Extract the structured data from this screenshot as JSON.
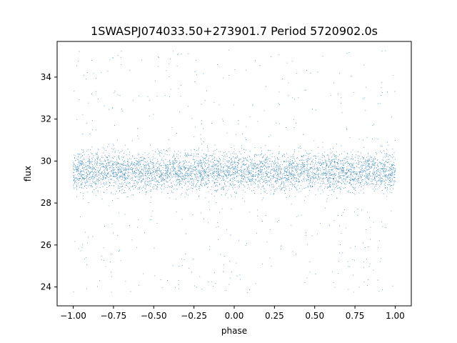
{
  "chart_data": {
    "type": "scatter",
    "title": "1SWASPJ074033.50+273901.7 Period 5720902.0s",
    "xlabel": "phase",
    "ylabel": "flux",
    "xlim": [
      -1.1,
      1.1
    ],
    "ylim": [
      23.1,
      35.7
    ],
    "x_ticks": [
      -1.0,
      -0.75,
      -0.5,
      -0.25,
      0.0,
      0.25,
      0.5,
      0.75,
      1.0
    ],
    "x_tick_labels": [
      "−1.00",
      "−0.75",
      "−0.50",
      "−0.25",
      "0.00",
      "0.25",
      "0.50",
      "0.75",
      "1.00"
    ],
    "y_ticks": [
      24,
      26,
      28,
      30,
      32,
      34
    ],
    "y_tick_labels": [
      "24",
      "26",
      "28",
      "30",
      "32",
      "34"
    ],
    "grid": false,
    "legend": "none",
    "marker_color": "#1f77b4",
    "phase_range": [
      -1.0,
      1.0
    ],
    "flux_band": {
      "median": 29.5,
      "spread": 0.9,
      "min": 23.7,
      "max": 35.3,
      "dense_low": 28.0,
      "dense_high": 31.0
    },
    "points": [
      [
        -0.98,
        29.6
      ],
      [
        -0.95,
        30.2
      ],
      [
        -0.93,
        28.8
      ],
      [
        -0.9,
        29.9
      ],
      [
        -0.88,
        31.5
      ],
      [
        -0.85,
        29.1
      ],
      [
        -0.82,
        28.2
      ],
      [
        -0.78,
        30.8
      ],
      [
        -0.76,
        24.5
      ],
      [
        -0.75,
        29.4
      ],
      [
        -0.72,
        30.5
      ],
      [
        -0.68,
        28.6
      ],
      [
        -0.64,
        29.7
      ],
      [
        -0.6,
        31.2
      ],
      [
        -0.58,
        29.2
      ],
      [
        -0.55,
        28.4
      ],
      [
        -0.5,
        29.8
      ],
      [
        -0.46,
        30.4
      ],
      [
        -0.42,
        29.0
      ],
      [
        -0.38,
        28.5
      ],
      [
        -0.34,
        29.9
      ],
      [
        -0.3,
        29.3
      ],
      [
        -0.26,
        28.7
      ],
      [
        -0.22,
        30.6
      ],
      [
        -0.18,
        29.5
      ],
      [
        -0.14,
        31.8
      ],
      [
        -0.1,
        29.2
      ],
      [
        -0.06,
        28.9
      ],
      [
        -0.02,
        30.1
      ],
      [
        0.02,
        29.7
      ],
      [
        0.05,
        31.3
      ],
      [
        0.08,
        29.0
      ],
      [
        0.12,
        28.6
      ],
      [
        0.16,
        30.3
      ],
      [
        0.2,
        29.4
      ],
      [
        0.23,
        25.0
      ],
      [
        0.25,
        29.6
      ],
      [
        0.28,
        30.7
      ],
      [
        0.32,
        28.8
      ],
      [
        0.36,
        29.9
      ],
      [
        0.4,
        29.1
      ],
      [
        0.44,
        28.3
      ],
      [
        0.48,
        30.5
      ],
      [
        0.52,
        29.6
      ],
      [
        0.56,
        30.2
      ],
      [
        0.6,
        29.0
      ],
      [
        0.64,
        28.7
      ],
      [
        0.68,
        29.8
      ],
      [
        0.72,
        28.5
      ],
      [
        0.76,
        29.4
      ],
      [
        0.8,
        31.0
      ],
      [
        0.84,
        29.2
      ],
      [
        0.88,
        30.4
      ],
      [
        0.92,
        28.6
      ],
      [
        0.95,
        30.9
      ],
      [
        0.98,
        29.5
      ],
      [
        -0.35,
        35.1
      ],
      [
        0.55,
        35.0
      ],
      [
        -0.2,
        23.9
      ],
      [
        0.9,
        23.8
      ]
    ]
  }
}
